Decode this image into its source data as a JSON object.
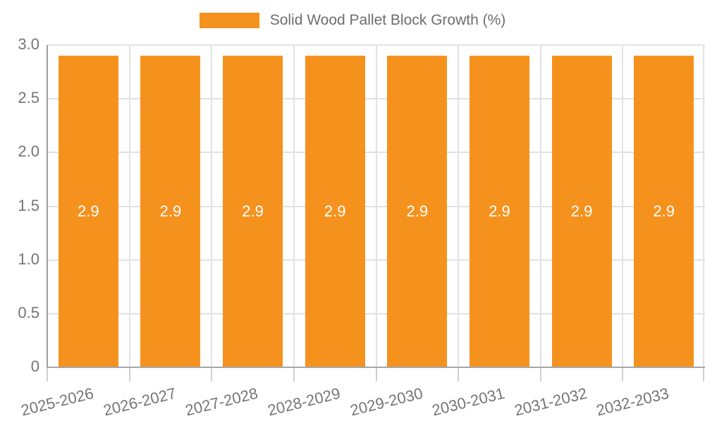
{
  "legend": {
    "label": "Solid Wood Pallet Block Growth (%)",
    "position": "top-center"
  },
  "chart_data": {
    "type": "bar",
    "title": "",
    "xlabel": "",
    "ylabel": "",
    "series_name": "Solid Wood Pallet Block Growth (%)",
    "categories": [
      "2025-2026",
      "2026-2027",
      "2027-2028",
      "2028-2029",
      "2029-2030",
      "2030-2031",
      "2031-2032",
      "2032-2033"
    ],
    "values": [
      2.9,
      2.9,
      2.9,
      2.9,
      2.9,
      2.9,
      2.9,
      2.9
    ],
    "bar_value_labels": [
      "2.9",
      "2.9",
      "2.9",
      "2.9",
      "2.9",
      "2.9",
      "2.9",
      "2.9"
    ],
    "ylim": [
      0,
      3
    ],
    "yticks": [
      0,
      0.5,
      1.0,
      1.5,
      2.0,
      2.5,
      3.0
    ],
    "ytick_labels": [
      "0",
      "0.5",
      "1.0",
      "1.5",
      "2.0",
      "2.5",
      "3.0"
    ],
    "grid": true,
    "legend_position": "top",
    "colors": {
      "bar": "#F5921E",
      "bar_label_text": "#ffffff",
      "axis_text": "#757575",
      "legend_text": "#6e6e6e",
      "gridline": "#e2e2e2",
      "axis_line": "#a6a6a6",
      "y_axis_line": "#9e9e9e",
      "tick": "#cfcfcf",
      "background": "#ffffff"
    }
  }
}
